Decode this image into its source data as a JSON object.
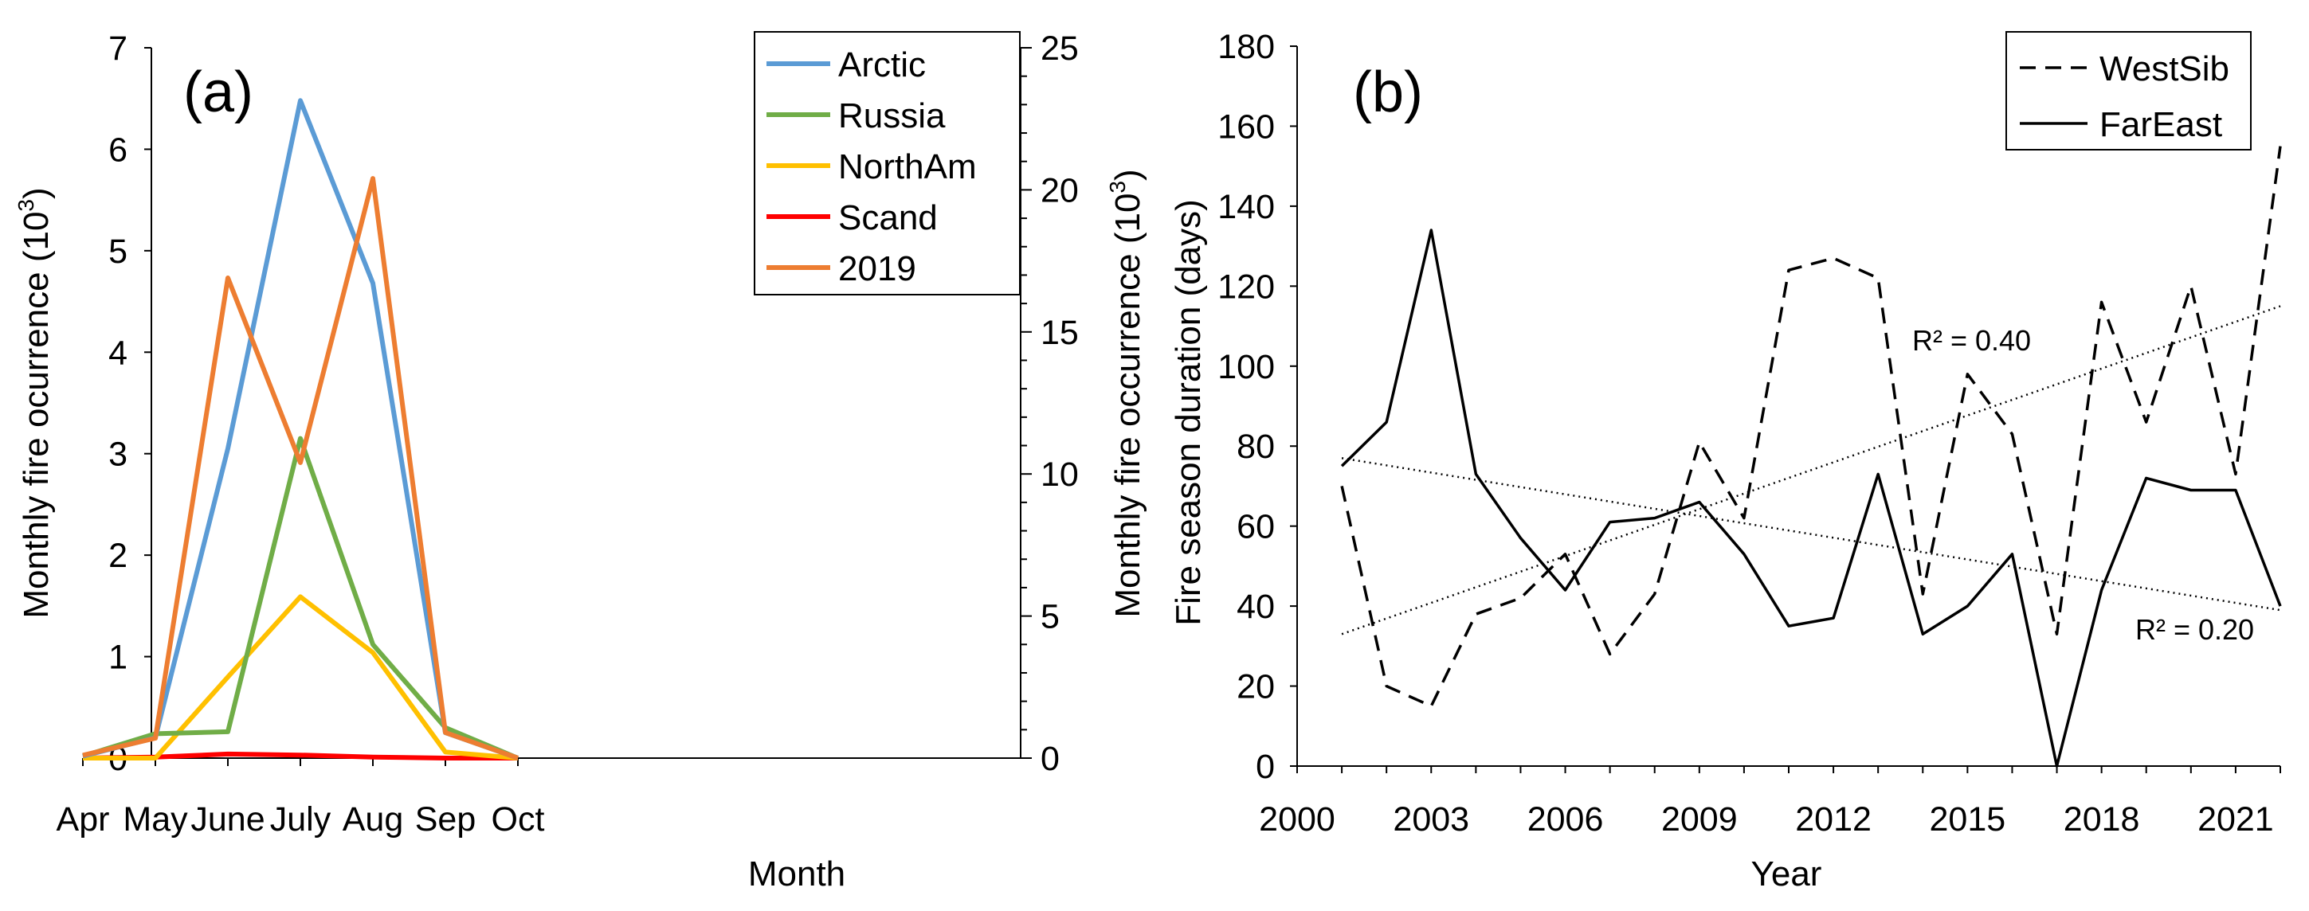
{
  "colors": {
    "Arctic": "#5B9BD5",
    "Russia": "#70AD47",
    "NorthAm": "#FFC000",
    "Scand": "#FF0000",
    "2019": "#ED7D31",
    "axis": "#000000"
  },
  "chart_data": [
    {
      "id": "panel-a",
      "type": "line",
      "panel_label": "(a)",
      "xlabel": "Month",
      "ylabel_left_text": "Monthly fire ocurrence (10",
      "ylabel_left_sup": "3",
      "ylabel_left_close": ")",
      "ylabel_right_text": "Monthly fire occurrence (10",
      "ylabel_right_sup": "3",
      "ylabel_right_close": ")",
      "categories": [
        "Apr",
        "May",
        "June",
        "July",
        "Aug",
        "Sep",
        "Oct"
      ],
      "ylim_left": [
        0,
        7
      ],
      "yticks_left": [
        "0",
        "1",
        "2",
        "3",
        "4",
        "5",
        "6",
        "7"
      ],
      "ylim_right": [
        0,
        25
      ],
      "yticks_right": [
        "0",
        "5",
        "10",
        "15",
        "20",
        "25"
      ],
      "grid": false,
      "legend_position": "top-right",
      "series": [
        {
          "name": "Arctic",
          "axis": "left",
          "color_key": "Arctic",
          "values": [
            0.02,
            0.2,
            3.05,
            6.48,
            4.68,
            0.25,
            0.0
          ]
        },
        {
          "name": "Russia",
          "axis": "left",
          "color_key": "Russia",
          "values": [
            0.02,
            0.24,
            0.26,
            3.15,
            1.12,
            0.3,
            0.0
          ]
        },
        {
          "name": "NorthAm",
          "axis": "left",
          "color_key": "NorthAm",
          "values": [
            0.0,
            0.0,
            0.8,
            1.59,
            1.04,
            0.06,
            0.0
          ]
        },
        {
          "name": "Scand",
          "axis": "left",
          "color_key": "Scand",
          "values": [
            0.0,
            0.01,
            0.04,
            0.03,
            0.01,
            0.0,
            0.0
          ]
        },
        {
          "name": "2019",
          "axis": "right",
          "color_key": "2019",
          "values": [
            0.1,
            0.7,
            16.9,
            10.4,
            20.4,
            0.9,
            0.0
          ]
        }
      ]
    },
    {
      "id": "panel-b",
      "type": "line",
      "panel_label": "(b)",
      "xlabel": "Year",
      "ylabel": "Fire season duration (days)",
      "xlim": [
        2000,
        2022
      ],
      "xticks": [
        "2000",
        "2003",
        "2006",
        "2009",
        "2012",
        "2015",
        "2018",
        "2021"
      ],
      "ylim": [
        0,
        180
      ],
      "yticks": [
        "0",
        "20",
        "40",
        "60",
        "80",
        "100",
        "120",
        "140",
        "160",
        "180"
      ],
      "grid": false,
      "legend_position": "top-right",
      "x": [
        2001,
        2002,
        2003,
        2004,
        2005,
        2006,
        2007,
        2008,
        2009,
        2010,
        2011,
        2012,
        2013,
        2014,
        2015,
        2016,
        2017,
        2018,
        2019,
        2020,
        2021,
        2022
      ],
      "series": [
        {
          "name": "WestSib",
          "style": "dashed",
          "values": [
            70,
            20,
            15,
            38,
            42,
            53,
            28,
            43,
            81,
            62,
            124,
            127,
            122,
            43,
            98,
            83,
            33,
            116,
            86,
            120,
            73,
            155
          ]
        },
        {
          "name": "FarEast",
          "style": "solid",
          "values": [
            75,
            86,
            134,
            73,
            57,
            44,
            61,
            62,
            66,
            53,
            35,
            37,
            73,
            33,
            40,
            53,
            0,
            44,
            72,
            69,
            69,
            40
          ]
        }
      ],
      "trendlines": [
        {
          "of": "WestSib",
          "x": [
            2001,
            2022
          ],
          "y": [
            33,
            115
          ],
          "label": "R² = 0.40"
        },
        {
          "of": "FarEast",
          "x": [
            2001,
            2022
          ],
          "y": [
            77,
            39
          ],
          "label": "R² = 0.20"
        }
      ]
    }
  ]
}
